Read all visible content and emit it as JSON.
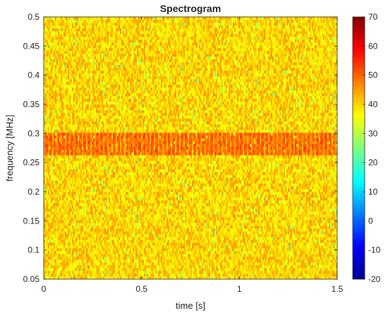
{
  "chart_data": {
    "type": "heatmap",
    "title": "Spectrogram",
    "xlabel": "time [s]",
    "ylabel": "frequency [MHz]",
    "xlim": [
      0,
      1.5
    ],
    "ylim": [
      0.05,
      0.5
    ],
    "x_ticks": [
      "0",
      "0.5",
      "1",
      "1.5"
    ],
    "y_ticks": [
      "0.05",
      "0.1",
      "0.15",
      "0.2",
      "0.25",
      "0.3",
      "0.35",
      "0.4",
      "0.45",
      "0.5"
    ],
    "colorbar": {
      "colormap": "jet",
      "range": [
        -20,
        70
      ],
      "ticks": [
        "-20",
        "-10",
        "0",
        "10",
        "20",
        "30",
        "40",
        "50",
        "60",
        "70"
      ]
    },
    "background_level": 40,
    "features": [
      {
        "band_mhz": [
          0.265,
          0.3
        ],
        "time_s": [
          0,
          1.5
        ],
        "level": 50
      }
    ],
    "grid": false
  }
}
